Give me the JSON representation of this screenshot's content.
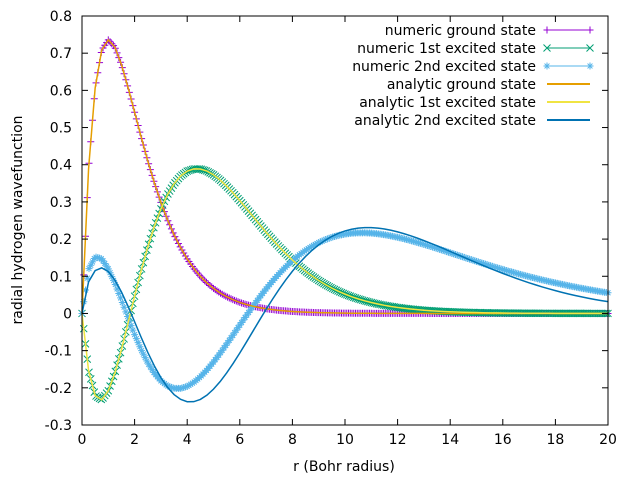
{
  "chart_data": {
    "type": "line",
    "title": "",
    "xlabel": "r (Bohr radius)",
    "ylabel": "radial hydrogen wavefunction",
    "xlim": [
      0,
      20
    ],
    "ylim": [
      -0.3,
      0.8
    ],
    "xticks": [
      0,
      2,
      4,
      6,
      8,
      10,
      12,
      14,
      16,
      18,
      20
    ],
    "xtick_labels": [
      "0",
      "2",
      "4",
      "6",
      "8",
      "10",
      "12",
      "14",
      "16",
      "18",
      "20"
    ],
    "yticks": [
      -0.3,
      -0.2,
      -0.1,
      0,
      0.1,
      0.2,
      0.3,
      0.4,
      0.5,
      0.6,
      0.7,
      0.8
    ],
    "ytick_labels": [
      "-0.3",
      "-0.2",
      "-0.1",
      "0",
      "0.1",
      "0.2",
      "0.3",
      "0.4",
      "0.5",
      "0.6",
      "0.7",
      "0.8"
    ],
    "grid": false,
    "legend_position": "top-right",
    "x": [
      0,
      0.25,
      0.5,
      0.75,
      1,
      1.25,
      1.5,
      1.75,
      2,
      2.25,
      2.5,
      2.75,
      3,
      3.25,
      3.5,
      3.75,
      4,
      4.25,
      4.5,
      4.75,
      5,
      5.25,
      5.5,
      5.75,
      6,
      6.25,
      6.5,
      6.75,
      7,
      7.25,
      7.5,
      7.75,
      8,
      8.25,
      8.5,
      8.75,
      9,
      9.25,
      9.5,
      9.75,
      10,
      10.25,
      10.5,
      10.75,
      11,
      11.25,
      11.5,
      11.75,
      12,
      12.25,
      12.5,
      12.75,
      13,
      13.25,
      13.5,
      13.75,
      14,
      14.25,
      14.5,
      14.75,
      15,
      15.25,
      15.5,
      15.75,
      16,
      16.25,
      16.5,
      16.75,
      17,
      17.25,
      17.5,
      17.75,
      18,
      18.25,
      18.5,
      18.75,
      19,
      19.25,
      19.5,
      19.75,
      20
    ],
    "series": [
      {
        "name": "numeric ground state",
        "style": "points",
        "marker": "plus",
        "color": "#9400d3",
        "values": [
          0,
          0.3894,
          0.6065,
          0.7085,
          0.7358,
          0.7163,
          0.6694,
          0.608,
          0.5413,
          0.4743,
          0.4104,
          0.3517,
          0.2987,
          0.252,
          0.2114,
          0.1766,
          0.1465,
          0.1211,
          0.0999,
          0.0822,
          0.0674,
          0.0551,
          0.045,
          0.0366,
          0.0297,
          0.0241,
          0.0195,
          0.0158,
          0.0128,
          0.0103,
          0.0083,
          0.0067,
          0.0054,
          0.0043,
          0.0035,
          0.0028,
          0.0022,
          0.0018,
          0.0014,
          0.0011,
          0.0009,
          0.0007,
          0.0006,
          0.0005,
          0.0004,
          0.0003,
          0.0002,
          0.0002,
          0.0001,
          0.0001,
          0.0001,
          0.0001,
          0.0001,
          0,
          0,
          0,
          0,
          0,
          0,
          0,
          0,
          0,
          0,
          0,
          0,
          0,
          0,
          0,
          0,
          0,
          0,
          0,
          0,
          0,
          0,
          0,
          0,
          0,
          0,
          0,
          0
        ]
      },
      {
        "name": "numeric 1st excited state",
        "style": "points",
        "marker": "cross",
        "color": "#009e73",
        "values": [
          0,
          -0.1536,
          -0.2206,
          -0.2323,
          -0.2078,
          -0.1599,
          -0.0971,
          -0.0257,
          0.0464,
          0.1155,
          0.1788,
          0.2344,
          0.2813,
          0.3194,
          0.3487,
          0.3696,
          0.3827,
          0.3887,
          0.3885,
          0.3829,
          0.3728,
          0.359,
          0.3423,
          0.3236,
          0.3034,
          0.2823,
          0.2609,
          0.2395,
          0.2185,
          0.1983,
          0.179,
          0.1608,
          0.1437,
          0.128,
          0.1136,
          0.1005,
          0.0886,
          0.0778,
          0.0681,
          0.0596,
          0.052,
          0.0452,
          0.0392,
          0.034,
          0.0294,
          0.0254,
          0.0219,
          0.0188,
          0.0162,
          0.0139,
          0.0119,
          0.0102,
          0.0087,
          0.0074,
          0.0063,
          0.0054,
          0.0046,
          0.0039,
          0.0033,
          0.0028,
          0.0024,
          0.002,
          0.0017,
          0.0014,
          0.0012,
          0.001,
          0.0009,
          0.0007,
          0.0006,
          0.0005,
          0.0004,
          0.0004,
          0.0003,
          0.0003,
          0.0002,
          0.0002,
          0.0002,
          0.0001,
          0.0001,
          0.0001,
          0.0001
        ]
      },
      {
        "name": "numeric 2nd excited state",
        "style": "points",
        "marker": "star",
        "color": "#56b4e9",
        "values": [
          0,
          0.1184,
          0.1522,
          0.1469,
          0.12,
          0.081,
          0.0357,
          -0.0115,
          -0.0568,
          -0.0977,
          -0.1326,
          -0.1606,
          -0.1814,
          -0.1949,
          -0.2015,
          -0.2017,
          -0.1961,
          -0.1854,
          -0.1704,
          -0.1519,
          -0.1306,
          -0.1072,
          -0.0825,
          -0.057,
          -0.0312,
          -0.0057,
          0.0192,
          0.0432,
          0.066,
          0.0875,
          0.1074,
          0.1256,
          0.1421,
          0.1568,
          0.1698,
          0.181,
          0.1906,
          0.1985,
          0.2049,
          0.2098,
          0.2134,
          0.2157,
          0.2168,
          0.2169,
          0.216,
          0.2142,
          0.2117,
          0.2085,
          0.2048,
          0.2006,
          0.196,
          0.191,
          0.1858,
          0.1803,
          0.1747,
          0.169,
          0.1632,
          0.1574,
          0.1516,
          0.1458,
          0.1401,
          0.1345,
          0.129,
          0.1236,
          0.1184,
          0.1133,
          0.1084,
          0.1036,
          0.099,
          0.0945,
          0.0902,
          0.0861,
          0.0821,
          0.0783,
          0.0746,
          0.0711,
          0.0677,
          0.0645,
          0.0614,
          0.0584,
          0.0556
        ]
      },
      {
        "name": "analytic ground state",
        "style": "line",
        "color": "#e69f00",
        "values": [
          0,
          0.3894,
          0.6065,
          0.7085,
          0.7358,
          0.7163,
          0.6694,
          0.608,
          0.5413,
          0.4743,
          0.4104,
          0.3517,
          0.2987,
          0.252,
          0.2114,
          0.1766,
          0.1465,
          0.1211,
          0.0999,
          0.0822,
          0.0674,
          0.0551,
          0.045,
          0.0366,
          0.0297,
          0.0241,
          0.0195,
          0.0158,
          0.0128,
          0.0103,
          0.0083,
          0.0067,
          0.0054,
          0.0043,
          0.0035,
          0.0028,
          0.0022,
          0.0018,
          0.0014,
          0.0011,
          0.0009,
          0.0007,
          0.0006,
          0.0005,
          0.0004,
          0.0003,
          0.0002,
          0.0002,
          0.0001,
          0.0001,
          0.0001,
          0.0001,
          0.0001,
          0,
          0,
          0,
          0,
          0,
          0,
          0,
          0,
          0,
          0,
          0,
          0,
          0,
          0,
          0,
          0,
          0,
          0,
          0,
          0,
          0,
          0,
          0,
          0,
          0,
          0,
          0,
          0
        ]
      },
      {
        "name": "analytic 1st excited state",
        "style": "line",
        "color": "#f0e442",
        "values": [
          0,
          -0.1536,
          -0.2206,
          -0.2323,
          -0.2078,
          -0.1599,
          -0.0971,
          -0.0257,
          0.0464,
          0.1155,
          0.1788,
          0.2344,
          0.2813,
          0.3194,
          0.3487,
          0.3696,
          0.3827,
          0.3887,
          0.3885,
          0.3829,
          0.3728,
          0.359,
          0.3423,
          0.3236,
          0.3034,
          0.2823,
          0.2609,
          0.2395,
          0.2185,
          0.1983,
          0.179,
          0.1608,
          0.1437,
          0.128,
          0.1136,
          0.1005,
          0.0886,
          0.0778,
          0.0681,
          0.0596,
          0.052,
          0.0452,
          0.0392,
          0.034,
          0.0294,
          0.0254,
          0.0219,
          0.0188,
          0.0162,
          0.0139,
          0.0119,
          0.0102,
          0.0087,
          0.0074,
          0.0063,
          0.0054,
          0.0046,
          0.0039,
          0.0033,
          0.0028,
          0.0024,
          0.002,
          0.0017,
          0.0014,
          0.0012,
          0.001,
          0.0009,
          0.0007,
          0.0006,
          0.0005,
          0.0004,
          0.0004,
          0.0003,
          0.0003,
          0.0002,
          0.0002,
          0.0002,
          0.0001,
          0.0001,
          0.0001,
          0.0001
        ]
      },
      {
        "name": "analytic 2nd excited state",
        "style": "line",
        "color": "#0072b2",
        "values": [
          0,
          0.0851,
          0.1153,
          0.1226,
          0.1127,
          0.0899,
          0.0578,
          0.0194,
          -0.0223,
          -0.0643,
          -0.1044,
          -0.1409,
          -0.1726,
          -0.1985,
          -0.2181,
          -0.231,
          -0.2373,
          -0.2372,
          -0.2312,
          -0.2198,
          -0.2036,
          -0.1835,
          -0.1601,
          -0.1341,
          -0.1063,
          -0.0773,
          -0.0477,
          -0.0181,
          0.0109,
          0.0389,
          0.0655,
          0.0904,
          0.1135,
          0.1345,
          0.1533,
          0.17,
          0.1845,
          0.1969,
          0.2072,
          0.2155,
          0.2219,
          0.2265,
          0.2294,
          0.2308,
          0.2308,
          0.2295,
          0.2271,
          0.2237,
          0.2194,
          0.2144,
          0.2088,
          0.2026,
          0.196,
          0.189,
          0.1818,
          0.1744,
          0.1668,
          0.1592,
          0.1516,
          0.144,
          0.1365,
          0.1291,
          0.1218,
          0.1147,
          0.1078,
          0.1011,
          0.0947,
          0.0884,
          0.0825,
          0.0768,
          0.0714,
          0.0662,
          0.0613,
          0.0567,
          0.0524,
          0.0483,
          0.0445,
          0.0409,
          0.0376,
          0.0345,
          0.0317
        ]
      }
    ]
  }
}
